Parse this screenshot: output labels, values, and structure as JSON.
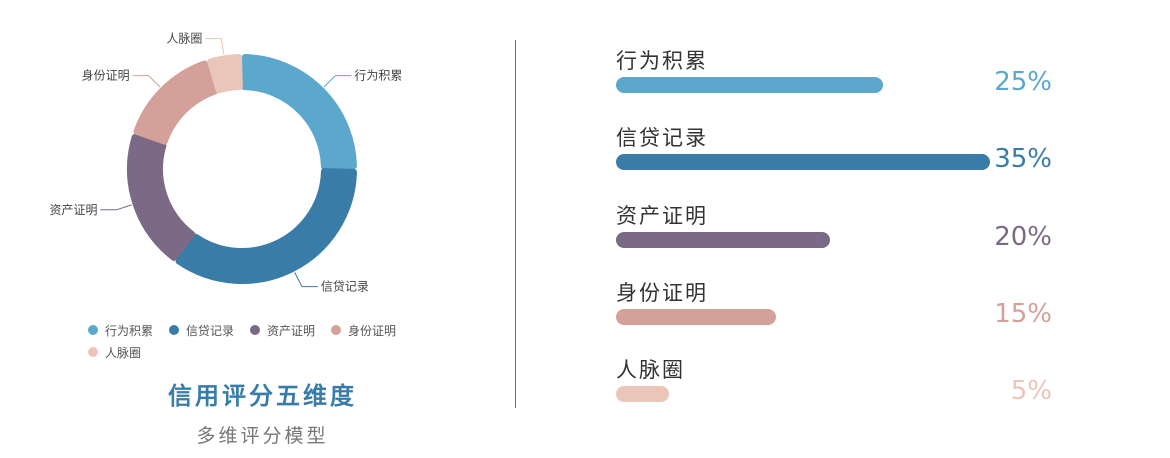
{
  "chart_data": [
    {
      "type": "pie",
      "variant": "donut",
      "categories": [
        "行为积累",
        "信贷记录",
        "资产证明",
        "身份证明",
        "人脉圈"
      ],
      "values": [
        25,
        35,
        20,
        15,
        5
      ],
      "colors": [
        "#5ba8cc",
        "#3a7ca8",
        "#7c6985",
        "#d4a09a",
        "#eac6ba"
      ],
      "legend": "bottom",
      "title": "信用评分五维度",
      "subtitle": "多维评分模型"
    },
    {
      "type": "bar",
      "orientation": "horizontal",
      "categories": [
        "行为积累",
        "信贷记录",
        "资产证明",
        "身份证明",
        "人脉圈"
      ],
      "values": [
        25,
        35,
        20,
        15,
        5
      ],
      "labels": [
        "25%",
        "35%",
        "20%",
        "15%",
        "5%"
      ],
      "xlim": [
        0,
        35
      ],
      "colors": [
        "#5ba8cc",
        "#3a7ca8",
        "#7c6985",
        "#d4a09a",
        "#eac6ba"
      ]
    }
  ]
}
